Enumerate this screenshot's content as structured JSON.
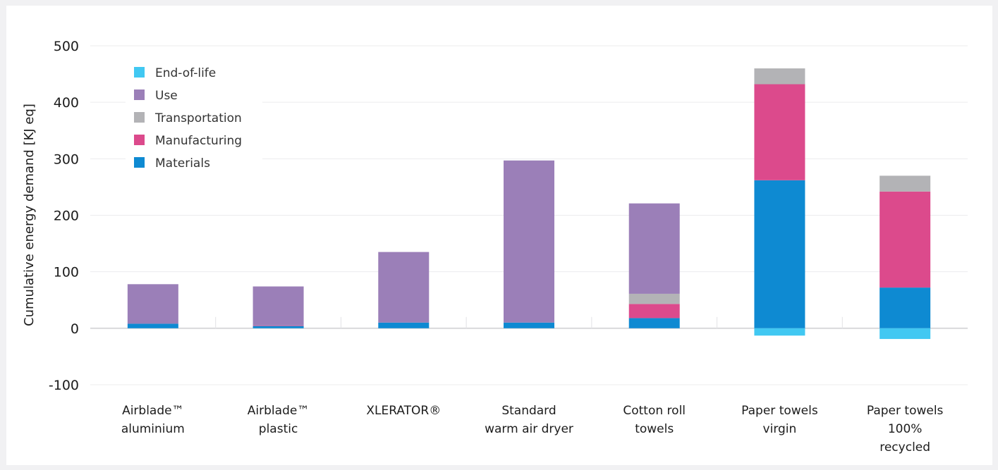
{
  "chart_data": {
    "type": "bar",
    "stacked": true,
    "ylabel": "Cumulative energy demand [KJ eq]",
    "ylim": [
      -100,
      500
    ],
    "yticks": [
      -100,
      0,
      100,
      200,
      300,
      400,
      500
    ],
    "grid": true,
    "legend_position": "top-left",
    "categories": [
      [
        "Airblade™",
        "aluminium"
      ],
      [
        "Airblade™",
        "plastic"
      ],
      [
        "XLERATOR®"
      ],
      [
        "Standard",
        "warm air dryer"
      ],
      [
        "Cotton roll",
        "towels"
      ],
      [
        "Paper towels",
        "virgin"
      ],
      [
        "Paper towels",
        "100%",
        "recycled"
      ]
    ],
    "series": [
      {
        "name": "Materials",
        "color": "#0e8ad2",
        "values": [
          8,
          4,
          10,
          10,
          18,
          262,
          72
        ]
      },
      {
        "name": "Manufacturing",
        "color": "#dc4a8c",
        "values": [
          0,
          1,
          0,
          0,
          25,
          170,
          170
        ]
      },
      {
        "name": "Transportation",
        "color": "#b3b3b6",
        "values": [
          0,
          0,
          0,
          0,
          18,
          28,
          28
        ]
      },
      {
        "name": "Use",
        "color": "#9b7fb8",
        "values": [
          70,
          69,
          125,
          287,
          160,
          0,
          0
        ]
      },
      {
        "name": "End-of-life",
        "color": "#41c8f2",
        "values": [
          0,
          0,
          0,
          0,
          0,
          -13,
          -19
        ]
      }
    ],
    "legend_order": [
      "End-of-life",
      "Use",
      "Transportation",
      "Manufacturing",
      "Materials"
    ]
  }
}
